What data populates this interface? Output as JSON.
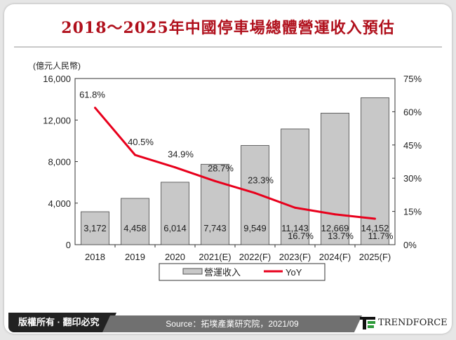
{
  "title": "2018～2025年中國停車場總體營運收入預估",
  "footer": {
    "copyright": "版權所有 · 翻印必究",
    "source": "Source：拓墣產業研究院，2021/09",
    "logo": "TRENDFORCE"
  },
  "colors": {
    "title": "#b0101c",
    "bar": "#c8c8c8",
    "line": "#e8001c"
  },
  "chart_data": {
    "type": "bar+line",
    "categories": [
      "2018",
      "2019",
      "2020",
      "2021(E)",
      "2022(F)",
      "2023(F)",
      "2024(F)",
      "2025(F)"
    ],
    "y_left_label": "(億元人民幣)",
    "y_left_lim": [
      0,
      16000
    ],
    "y_left_ticks": [
      "0",
      "4,000",
      "8,000",
      "12,000",
      "16,000"
    ],
    "y_right_lim": [
      0,
      75
    ],
    "y_right_ticks": [
      "0%",
      "15%",
      "30%",
      "45%",
      "60%",
      "75%"
    ],
    "series": [
      {
        "name": "營運收入",
        "type": "bar",
        "values": [
          3172,
          4458,
          6014,
          7743,
          9549,
          11143,
          12669,
          14152
        ],
        "labels": [
          "3,172",
          "4,458",
          "6,014",
          "7,743",
          "9,549",
          "11,143",
          "12,669",
          "14,152"
        ]
      },
      {
        "name": "YoY",
        "type": "line",
        "axis": "right",
        "values": [
          61.8,
          40.5,
          34.9,
          28.7,
          23.3,
          16.7,
          13.7,
          11.7
        ],
        "labels": [
          "61.8%",
          "40.5%",
          "34.9%",
          "28.7%",
          "23.3%",
          "16.7%",
          "13.7%",
          "11.7%"
        ]
      }
    ],
    "legend": "bottom",
    "grid": false
  }
}
